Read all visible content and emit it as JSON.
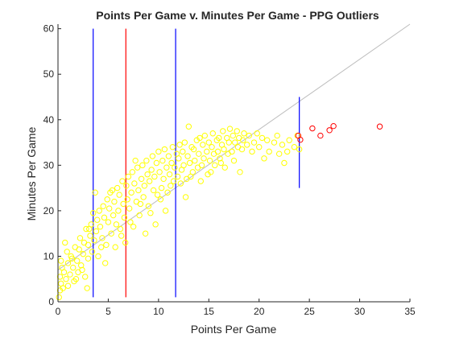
{
  "chart_data": {
    "type": "scatter",
    "title": "Points Per Game v. Minutes Per Game - PPG Outliers",
    "xlabel": "Points Per Game",
    "ylabel": "Minutes Per Game",
    "xlim": [
      0,
      35
    ],
    "ylim": [
      0,
      61
    ],
    "xticks": [
      0,
      5,
      10,
      15,
      20,
      25,
      30,
      35
    ],
    "yticks": [
      0,
      10,
      20,
      30,
      40,
      50,
      60
    ],
    "grid": false,
    "box": "open",
    "series": [
      {
        "role": "players",
        "marker": "open-circle",
        "color": "#ffff00",
        "points": [
          [
            0.1,
            1.0
          ],
          [
            0.2,
            2.5
          ],
          [
            0.3,
            4.0
          ],
          [
            0.2,
            5.5
          ],
          [
            0.5,
            3.0
          ],
          [
            0.6,
            6.5
          ],
          [
            0.8,
            5.0
          ],
          [
            0.4,
            7.5
          ],
          [
            1.0,
            3.5
          ],
          [
            1.0,
            8.5
          ],
          [
            1.2,
            6.0
          ],
          [
            1.3,
            10.0
          ],
          [
            1.5,
            7.5
          ],
          [
            1.6,
            4.5
          ],
          [
            1.7,
            12.0
          ],
          [
            1.9,
            9.0
          ],
          [
            2.0,
            6.5
          ],
          [
            2.1,
            11.5
          ],
          [
            2.2,
            14.0
          ],
          [
            2.3,
            8.0
          ],
          [
            2.5,
            10.5
          ],
          [
            2.6,
            13.0
          ],
          [
            2.7,
            5.5
          ],
          [
            2.8,
            16.0
          ],
          [
            3.0,
            9.5
          ],
          [
            3.0,
            12.5
          ],
          [
            3.2,
            14.5
          ],
          [
            3.3,
            17.0
          ],
          [
            3.4,
            11.0
          ],
          [
            3.5,
            19.5
          ],
          [
            3.6,
            13.5
          ],
          [
            3.8,
            15.5
          ],
          [
            3.9,
            18.0
          ],
          [
            4.0,
            10.0
          ],
          [
            4.1,
            20.0
          ],
          [
            4.2,
            16.5
          ],
          [
            4.4,
            14.0
          ],
          [
            4.5,
            21.0
          ],
          [
            4.6,
            18.5
          ],
          [
            4.8,
            12.5
          ],
          [
            4.9,
            22.5
          ],
          [
            5.0,
            17.5
          ],
          [
            5.1,
            20.5
          ],
          [
            5.3,
            15.0
          ],
          [
            5.4,
            24.5
          ],
          [
            5.5,
            19.0
          ],
          [
            5.6,
            22.0
          ],
          [
            5.8,
            17.0
          ],
          [
            5.9,
            25.0
          ],
          [
            6.0,
            20.0
          ],
          [
            6.1,
            23.5
          ],
          [
            6.3,
            14.5
          ],
          [
            6.4,
            26.5
          ],
          [
            6.5,
            21.5
          ],
          [
            6.6,
            18.5
          ],
          [
            6.8,
            25.5
          ],
          [
            6.9,
            22.5
          ],
          [
            7.0,
            27.5
          ],
          [
            7.1,
            20.5
          ],
          [
            7.3,
            24.0
          ],
          [
            7.4,
            28.5
          ],
          [
            7.5,
            16.5
          ],
          [
            7.6,
            26.0
          ],
          [
            7.8,
            22.0
          ],
          [
            7.9,
            29.5
          ],
          [
            8.0,
            24.5
          ],
          [
            8.1,
            19.0
          ],
          [
            8.3,
            27.0
          ],
          [
            8.4,
            30.0
          ],
          [
            8.5,
            23.0
          ],
          [
            8.6,
            25.5
          ],
          [
            8.8,
            31.0
          ],
          [
            8.9,
            28.0
          ],
          [
            9.0,
            21.0
          ],
          [
            9.1,
            26.5
          ],
          [
            9.3,
            29.0
          ],
          [
            9.4,
            32.0
          ],
          [
            9.5,
            24.5
          ],
          [
            9.6,
            27.5
          ],
          [
            9.8,
            30.5
          ],
          [
            9.9,
            23.5
          ],
          [
            10.0,
            33.0
          ],
          [
            10.1,
            28.5
          ],
          [
            10.3,
            25.0
          ],
          [
            10.4,
            31.0
          ],
          [
            10.5,
            27.0
          ],
          [
            10.6,
            33.5
          ],
          [
            10.8,
            29.5
          ],
          [
            10.9,
            24.0
          ],
          [
            11.0,
            32.0
          ],
          [
            11.1,
            28.0
          ],
          [
            11.3,
            30.5
          ],
          [
            11.4,
            34.0
          ],
          [
            11.5,
            26.5
          ],
          [
            11.6,
            29.5
          ],
          [
            11.8,
            32.5
          ],
          [
            11.9,
            27.5
          ],
          [
            12.0,
            31.5
          ],
          [
            12.1,
            34.5
          ],
          [
            12.3,
            29.0
          ],
          [
            12.4,
            33.0
          ],
          [
            12.5,
            30.0
          ],
          [
            12.6,
            35.0
          ],
          [
            12.8,
            27.0
          ],
          [
            12.9,
            32.0
          ],
          [
            13.0,
            38.5
          ],
          [
            13.1,
            30.5
          ],
          [
            13.3,
            34.0
          ],
          [
            13.4,
            28.5
          ],
          [
            13.5,
            33.5
          ],
          [
            13.6,
            31.0
          ],
          [
            13.8,
            35.5
          ],
          [
            13.9,
            29.5
          ],
          [
            14.0,
            32.5
          ],
          [
            14.1,
            36.0
          ],
          [
            14.3,
            30.0
          ],
          [
            14.4,
            34.5
          ],
          [
            14.5,
            31.5
          ],
          [
            14.6,
            36.5
          ],
          [
            14.8,
            33.0
          ],
          [
            14.9,
            28.0
          ],
          [
            15.0,
            35.0
          ],
          [
            15.1,
            31.0
          ],
          [
            15.3,
            34.0
          ],
          [
            15.4,
            37.0
          ],
          [
            15.5,
            32.5
          ],
          [
            15.6,
            30.0
          ],
          [
            15.8,
            35.5
          ],
          [
            15.9,
            33.0
          ],
          [
            16.0,
            36.0
          ],
          [
            16.1,
            31.5
          ],
          [
            16.3,
            34.5
          ],
          [
            16.4,
            37.5
          ],
          [
            16.5,
            33.5
          ],
          [
            16.6,
            29.5
          ],
          [
            16.8,
            36.0
          ],
          [
            16.9,
            32.5
          ],
          [
            17.0,
            35.0
          ],
          [
            17.1,
            38.0
          ],
          [
            17.3,
            33.0
          ],
          [
            17.4,
            36.5
          ],
          [
            17.5,
            31.0
          ],
          [
            17.6,
            35.0
          ],
          [
            17.8,
            37.5
          ],
          [
            17.9,
            34.0
          ],
          [
            18.0,
            36.0
          ],
          [
            18.1,
            28.5
          ],
          [
            18.3,
            33.5
          ],
          [
            18.4,
            35.5
          ],
          [
            18.5,
            37.0
          ],
          [
            18.8,
            34.5
          ],
          [
            19.0,
            36.5
          ],
          [
            19.3,
            33.0
          ],
          [
            19.5,
            35.0
          ],
          [
            19.8,
            37.0
          ],
          [
            20.0,
            34.0
          ],
          [
            20.3,
            36.0
          ],
          [
            20.5,
            31.5
          ],
          [
            20.8,
            35.5
          ],
          [
            21.0,
            33.0
          ],
          [
            21.5,
            35.0
          ],
          [
            21.8,
            36.5
          ],
          [
            22.0,
            32.5
          ],
          [
            22.3,
            34.5
          ],
          [
            22.5,
            30.5
          ],
          [
            22.8,
            33.0
          ],
          [
            23.0,
            35.5
          ],
          [
            23.5,
            34.0
          ],
          [
            23.8,
            36.5
          ],
          [
            24.0,
            33.5
          ],
          [
            1.4,
            9.5
          ],
          [
            2.4,
            7.0
          ],
          [
            3.1,
            16.0
          ],
          [
            0.9,
            11.0
          ],
          [
            4.3,
            12.0
          ],
          [
            5.2,
            24.0
          ],
          [
            6.2,
            16.0
          ],
          [
            7.2,
            17.5
          ],
          [
            8.2,
            21.5
          ],
          [
            9.2,
            19.5
          ],
          [
            10.2,
            22.5
          ],
          [
            11.2,
            25.5
          ],
          [
            12.2,
            26.0
          ],
          [
            13.2,
            27.5
          ],
          [
            14.2,
            26.5
          ],
          [
            15.2,
            28.5
          ],
          [
            16.2,
            30.5
          ],
          [
            3.7,
            24.0
          ],
          [
            5.7,
            12.0
          ],
          [
            0.7,
            13.0
          ],
          [
            2.9,
            3.0
          ],
          [
            1.8,
            5.0
          ],
          [
            0.3,
            9.0
          ],
          [
            4.7,
            8.5
          ],
          [
            6.7,
            13.0
          ],
          [
            8.7,
            15.0
          ],
          [
            9.7,
            17.0
          ],
          [
            7.7,
            31.0
          ],
          [
            10.7,
            20.0
          ],
          [
            12.7,
            23.0
          ]
        ]
      },
      {
        "role": "outliers",
        "marker": "open-circle",
        "color": "#ff0000",
        "points": [
          [
            23.9,
            36.5
          ],
          [
            24.1,
            35.6
          ],
          [
            25.3,
            38.1
          ],
          [
            26.1,
            36.5
          ],
          [
            27.0,
            37.7
          ],
          [
            27.4,
            38.6
          ],
          [
            32.0,
            38.5
          ]
        ]
      }
    ],
    "reference_lines": [
      {
        "kind": "diagonal",
        "from": [
          0,
          7.0
        ],
        "to": [
          35,
          61.0
        ],
        "color": "#bdbdbd"
      },
      {
        "kind": "vertical",
        "x": 3.5,
        "y_range": [
          1.0,
          60.0
        ],
        "color": "#0000ff"
      },
      {
        "kind": "vertical",
        "x": 6.75,
        "y_range": [
          1.0,
          60.0
        ],
        "color": "#ff0000"
      },
      {
        "kind": "vertical",
        "x": 11.7,
        "y_range": [
          1.0,
          60.0
        ],
        "color": "#0000ff"
      },
      {
        "kind": "vertical",
        "x": 24.0,
        "y_range": [
          25.0,
          45.0
        ],
        "color": "#0000ff"
      }
    ]
  }
}
